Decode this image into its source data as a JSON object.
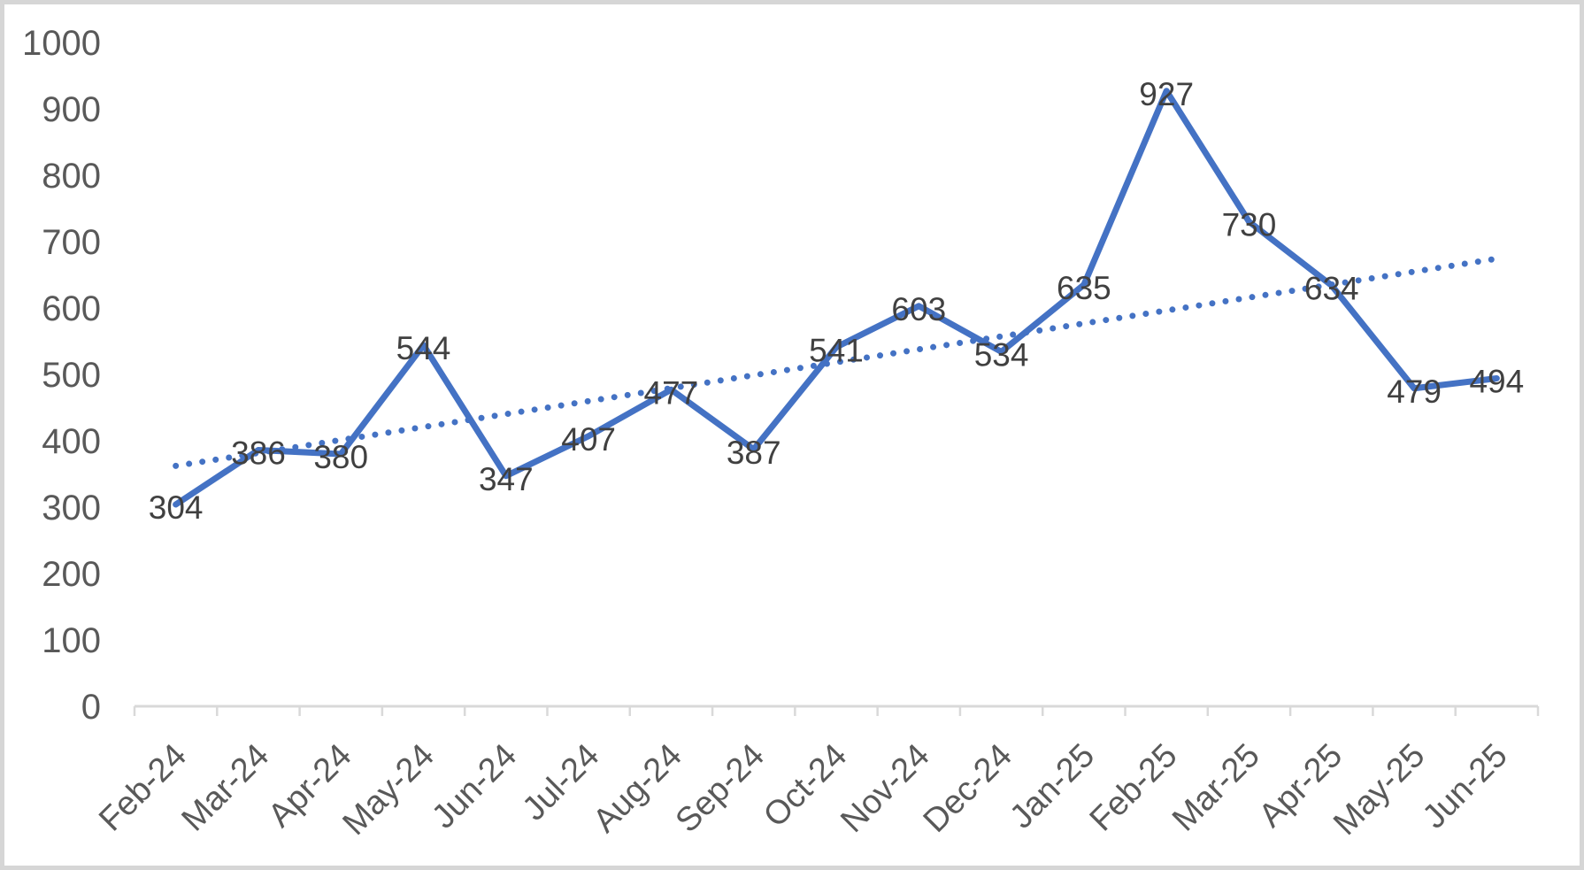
{
  "chart_data": {
    "type": "line",
    "categories": [
      "Feb-24",
      "Mar-24",
      "Apr-24",
      "May-24",
      "Jun-24",
      "Jul-24",
      "Aug-24",
      "Sep-24",
      "Oct-24",
      "Nov-24",
      "Dec-24",
      "Jan-25",
      "Feb-25",
      "Mar-25",
      "Apr-25",
      "May-25",
      "Jun-25"
    ],
    "series": [
      {
        "name": "values",
        "values": [
          304,
          386,
          380,
          544,
          347,
          407,
          477,
          387,
          541,
          603,
          534,
          635,
          927,
          730,
          634,
          479,
          494
        ],
        "color": "#4472C4",
        "data_labels_visible": true,
        "data_label_position": "center"
      }
    ],
    "trendline": {
      "type": "linear",
      "style": "dotted",
      "color": "#4472C4",
      "start_value": 362,
      "end_value": 674
    },
    "title": "",
    "xlabel": "",
    "ylabel": "",
    "ylim": [
      0,
      1000
    ],
    "y_tick_step": 100,
    "y_tick_labels": [
      "0",
      "100",
      "200",
      "300",
      "400",
      "500",
      "600",
      "700",
      "800",
      "900",
      "1000"
    ],
    "x_tick_label_rotation_deg": -45,
    "grid": false,
    "legend": false,
    "colors": {
      "axis_line": "#D9D9D9",
      "tick_mark": "#D9D9D9",
      "axis_text": "#595959",
      "data_label_text": "#404040",
      "frame_border": "#D6D6D6",
      "background": "#FFFFFF"
    }
  }
}
